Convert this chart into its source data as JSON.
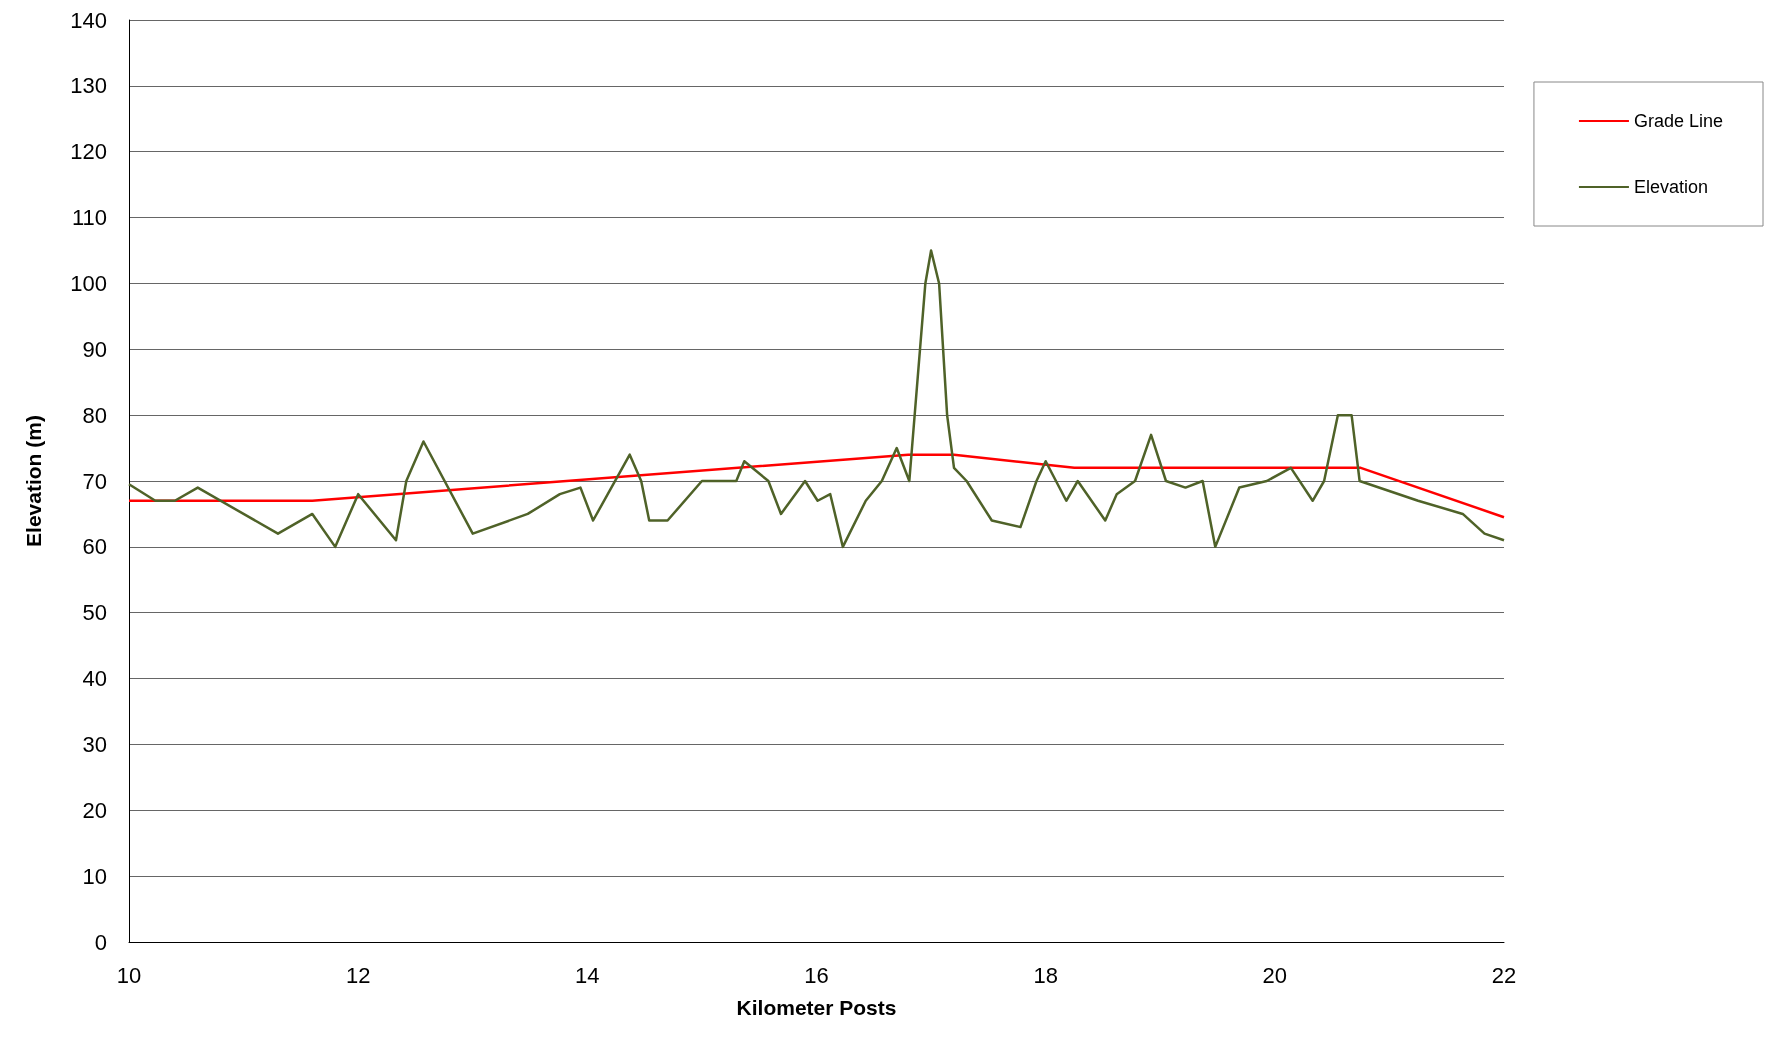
{
  "chart_data": {
    "type": "line",
    "xlabel": "Kilometer Posts",
    "ylabel": "Elevation (m)",
    "xlim": [
      10,
      22
    ],
    "xticks": [
      10,
      12,
      14,
      16,
      18,
      20,
      22
    ],
    "ylim": [
      0,
      140
    ],
    "yticks": [
      0,
      10,
      20,
      30,
      40,
      50,
      60,
      70,
      80,
      90,
      100,
      110,
      120,
      130,
      140
    ],
    "grid": "y",
    "legend": "top right",
    "marker": "none",
    "line_style": "solid",
    "series": [
      {
        "name": "Grade Line",
        "color": "#ff0000",
        "x": [
          10,
          11.6,
          16.8,
          17.2,
          18.25,
          20.75,
          22
        ],
        "values": [
          67,
          67,
          74,
          74,
          72,
          72,
          64.5
        ]
      },
      {
        "name": "Elevation",
        "color": "#4f6228",
        "x": [
          10,
          10.23,
          10.4,
          10.6,
          11.3,
          11.6,
          11.8,
          12.0,
          12.33,
          12.42,
          12.57,
          13.0,
          13.48,
          13.76,
          13.94,
          14.05,
          14.37,
          14.47,
          14.54,
          14.7,
          15.0,
          15.3,
          15.37,
          15.58,
          15.69,
          15.9,
          16.01,
          16.12,
          16.23,
          16.43,
          16.57,
          16.7,
          16.81,
          16.95,
          17.0,
          17.07,
          17.14,
          17.2,
          17.31,
          17.53,
          17.78,
          17.92,
          18.0,
          18.18,
          18.28,
          18.52,
          18.62,
          18.78,
          18.92,
          19.05,
          19.22,
          19.37,
          19.48,
          19.69,
          19.93,
          20.14,
          20.33,
          20.43,
          20.55,
          20.67,
          20.74,
          21.25,
          21.64,
          21.83,
          22
        ],
        "values": [
          69.5,
          67,
          67,
          69,
          62,
          65,
          60,
          68,
          61,
          70,
          76,
          62,
          65,
          68,
          69,
          64,
          74,
          70,
          64,
          64,
          70,
          70,
          73,
          70,
          65,
          70,
          67,
          68,
          60,
          67,
          70,
          75,
          70,
          100,
          105,
          100,
          80,
          72,
          70,
          64,
          63,
          70,
          73,
          67,
          70,
          64,
          68,
          70,
          77,
          70,
          69,
          70,
          60,
          69,
          70,
          72,
          67,
          70,
          80,
          80,
          70,
          67,
          65,
          62,
          61
        ]
      }
    ]
  }
}
